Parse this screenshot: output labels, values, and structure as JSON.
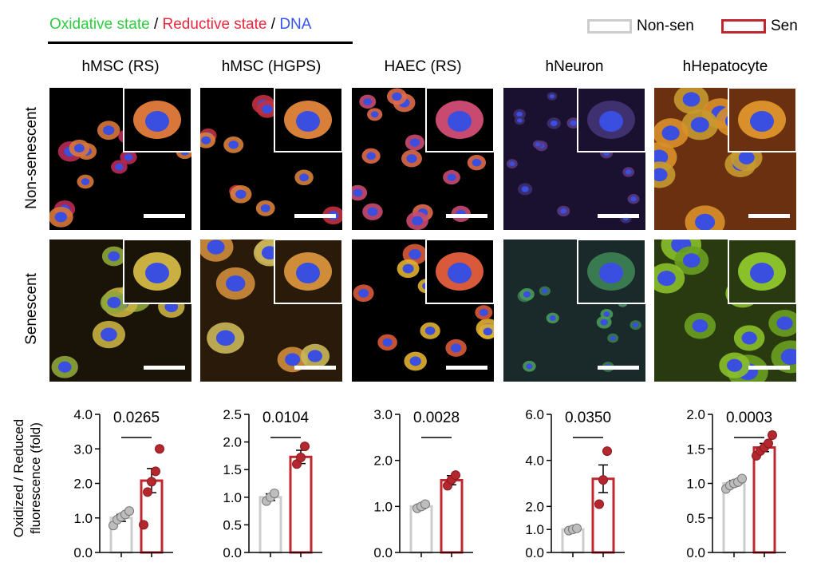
{
  "header": {
    "legend_title_parts": [
      {
        "text": "Oxidative state",
        "color": "#2ecc40"
      },
      {
        "text": " / ",
        "color": "#000000"
      },
      {
        "text": "Reductive state",
        "color": "#e8283c"
      },
      {
        "text": " / ",
        "color": "#000000"
      },
      {
        "text": "DNA",
        "color": "#3355ee"
      }
    ]
  },
  "legend": {
    "nonsen": {
      "label": "Non-sen",
      "color": "#cccccc"
    },
    "sen": {
      "label": "Sen",
      "color": "#c0282f"
    }
  },
  "columns": [
    {
      "title": "hMSC (RS)"
    },
    {
      "title": "hMSC (HGPS)"
    },
    {
      "title": "HAEC (RS)"
    },
    {
      "title": "hNeuron"
    },
    {
      "title": "hHepatocyte"
    }
  ],
  "rows": [
    {
      "label": "Non-senescent"
    },
    {
      "label": "Senescent"
    }
  ],
  "chart_ylabel_line1": "Oxidized / Reduced",
  "chart_ylabel_line2": "fluorescence (fold)",
  "chart_data": [
    {
      "type": "bar",
      "categories": [
        "Non-sen",
        "Sen"
      ],
      "ylim": [
        0,
        4.0
      ],
      "yticks": [
        "0.0",
        "1.0",
        "2.0",
        "3.0",
        "4.0"
      ],
      "ytick_values": [
        0,
        1,
        2,
        3,
        4
      ],
      "values": [
        1.0,
        2.08
      ],
      "errors": [
        0.1,
        0.35
      ],
      "pvalue": "0.0265",
      "points": [
        [
          0.78,
          0.95,
          1.03,
          1.1,
          1.2
        ],
        [
          0.8,
          1.75,
          2.05,
          2.35,
          3.0
        ]
      ]
    },
    {
      "type": "bar",
      "categories": [
        "Non-sen",
        "Sen"
      ],
      "ylim": [
        0,
        2.5
      ],
      "yticks": [
        "0.0",
        "0.5",
        "1.0",
        "1.5",
        "2.0",
        "2.5"
      ],
      "ytick_values": [
        0,
        0.5,
        1,
        1.5,
        2,
        2.5
      ],
      "values": [
        1.0,
        1.73
      ],
      "errors": [
        0.06,
        0.12
      ],
      "pvalue": "0.0104",
      "points": [
        [
          0.93,
          1.0,
          1.07
        ],
        [
          1.6,
          1.72,
          1.92
        ]
      ]
    },
    {
      "type": "bar",
      "categories": [
        "Non-sen",
        "Sen"
      ],
      "ylim": [
        0,
        3.0
      ],
      "yticks": [
        "0.0",
        "1.0",
        "2.0",
        "3.0"
      ],
      "ytick_values": [
        0,
        1,
        2,
        3
      ],
      "values": [
        1.0,
        1.57
      ],
      "errors": [
        0.05,
        0.1
      ],
      "pvalue": "0.0028",
      "points": [
        [
          0.96,
          1.0,
          1.05
        ],
        [
          1.45,
          1.58,
          1.68
        ]
      ]
    },
    {
      "type": "bar",
      "categories": [
        "Non-sen",
        "Sen"
      ],
      "ylim": [
        0,
        6.0
      ],
      "yticks": [
        "0.0",
        "1.0",
        "2.0",
        "4.0",
        "6.0"
      ],
      "ytick_values": [
        0,
        1,
        2,
        4,
        6
      ],
      "values": [
        1.0,
        3.2
      ],
      "errors": [
        0.05,
        0.6
      ],
      "pvalue": "0.0350",
      "points": [
        [
          0.95,
          1.0,
          1.05
        ],
        [
          2.1,
          3.15,
          4.4
        ]
      ]
    },
    {
      "type": "bar",
      "categories": [
        "Non-sen",
        "Sen"
      ],
      "ylim": [
        0,
        2.0
      ],
      "yticks": [
        "0.0",
        "0.5",
        "1.0",
        "1.5",
        "2.0"
      ],
      "ytick_values": [
        0,
        0.5,
        1,
        1.5,
        2
      ],
      "values": [
        1.0,
        1.52
      ],
      "errors": [
        0.04,
        0.06
      ],
      "pvalue": "0.0003",
      "points": [
        [
          0.92,
          0.97,
          1.0,
          1.02,
          1.07
        ],
        [
          1.4,
          1.47,
          1.52,
          1.58,
          1.7
        ]
      ]
    }
  ]
}
